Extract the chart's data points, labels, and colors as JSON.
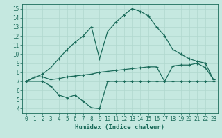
{
  "xlabel": "Humidex (Indice chaleur)",
  "bg_color": "#c5e8e0",
  "line_color": "#1a6b5a",
  "grid_color": "#b0d8ce",
  "xlim": [
    -0.5,
    23.5
  ],
  "ylim": [
    3.5,
    15.5
  ],
  "xticks": [
    0,
    1,
    2,
    3,
    4,
    5,
    6,
    7,
    8,
    9,
    10,
    11,
    12,
    13,
    14,
    15,
    16,
    17,
    18,
    19,
    20,
    21,
    22,
    23
  ],
  "yticks": [
    4,
    5,
    6,
    7,
    8,
    9,
    10,
    11,
    12,
    13,
    14,
    15
  ],
  "line_top_x": [
    0,
    2,
    3,
    4,
    5,
    6,
    7,
    8,
    9,
    10,
    11,
    12,
    13,
    14,
    15,
    16,
    17,
    18,
    19,
    20,
    21,
    22,
    23
  ],
  "line_top_y": [
    7.0,
    7.8,
    8.5,
    9.5,
    10.5,
    11.3,
    12.0,
    13.0,
    9.5,
    12.5,
    13.5,
    14.3,
    15.0,
    14.7,
    14.2,
    13.0,
    12.0,
    10.5,
    10.0,
    9.5,
    9.2,
    9.0,
    7.2
  ],
  "line_mid_x": [
    0,
    1,
    2,
    3,
    4,
    5,
    6,
    7,
    8,
    9,
    10,
    11,
    12,
    13,
    14,
    15,
    16,
    17,
    18,
    19,
    20,
    21,
    22,
    23
  ],
  "line_mid_y": [
    7.0,
    7.5,
    7.5,
    7.2,
    7.3,
    7.5,
    7.6,
    7.7,
    7.8,
    8.0,
    8.1,
    8.2,
    8.3,
    8.4,
    8.5,
    8.6,
    8.6,
    7.0,
    8.7,
    8.8,
    8.8,
    9.0,
    8.5,
    7.2
  ],
  "line_low_x": [
    0,
    2,
    3,
    4,
    5,
    6,
    7,
    8,
    9,
    10,
    11,
    12,
    13,
    14,
    15,
    16,
    17,
    18,
    19,
    20,
    21,
    22,
    23
  ],
  "line_low_y": [
    7.0,
    7.0,
    6.5,
    5.5,
    5.2,
    5.5,
    4.8,
    4.1,
    4.0,
    7.0,
    7.0,
    7.0,
    7.0,
    7.0,
    7.0,
    7.0,
    7.0,
    7.0,
    7.0,
    7.0,
    7.0,
    7.0,
    7.0
  ],
  "marker": "+",
  "markersize": 3,
  "linewidth": 0.9,
  "xlabel_fontsize": 6.5,
  "tick_fontsize": 5.5
}
